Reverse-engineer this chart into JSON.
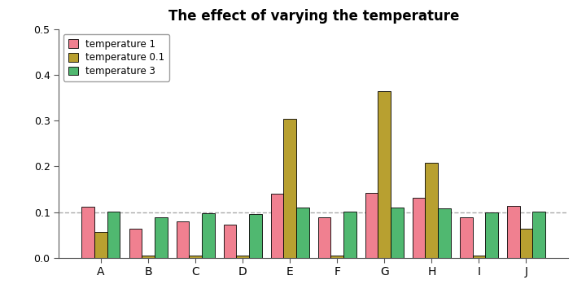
{
  "categories": [
    "A",
    "B",
    "C",
    "D",
    "E",
    "F",
    "G",
    "H",
    "I",
    "J"
  ],
  "temp1": [
    0.112,
    0.063,
    0.08,
    0.073,
    0.14,
    0.088,
    0.142,
    0.132,
    0.088,
    0.113
  ],
  "temp01": [
    0.057,
    0.005,
    0.005,
    0.005,
    0.305,
    0.005,
    0.365,
    0.208,
    0.005,
    0.063
  ],
  "temp3": [
    0.102,
    0.088,
    0.098,
    0.096,
    0.11,
    0.102,
    0.11,
    0.108,
    0.1,
    0.102
  ],
  "color_temp1": "#f08090",
  "color_temp01": "#b8a030",
  "color_temp3": "#50b870",
  "bar_edgecolor": "#000000",
  "hline_y": 0.1,
  "hline_color": "#aaaaaa",
  "title": "The effect of varying the temperature",
  "title_fontsize": 12,
  "ylim": [
    0,
    0.5
  ],
  "yticks": [
    0.0,
    0.1,
    0.2,
    0.3,
    0.4,
    0.5
  ],
  "legend_labels": [
    "temperature 1",
    "temperature 0.1",
    "temperature 3"
  ],
  "bar_width": 0.27,
  "bg_color": "#ffffff"
}
